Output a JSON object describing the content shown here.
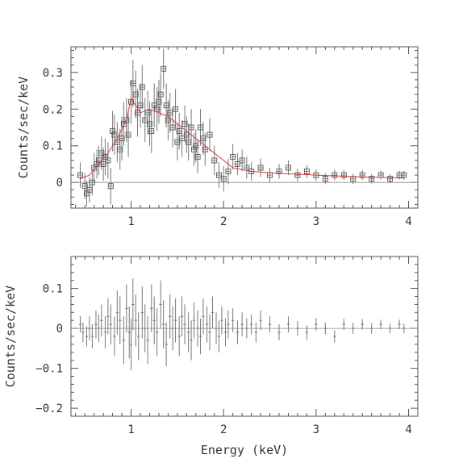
{
  "chart_data": [
    {
      "type": "scatter",
      "panel": "spectrum",
      "title": "",
      "xlabel": "",
      "ylabel": "Counts/sec/keV",
      "xlim": [
        0.35,
        4.1
      ],
      "ylim": [
        -0.07,
        0.37
      ],
      "xticks": [
        1,
        2,
        3,
        4
      ],
      "xtick_labels": [
        "1",
        "2",
        "3",
        "4"
      ],
      "yticks": [
        0,
        0.1,
        0.2,
        0.3
      ],
      "ytick_labels": [
        "0",
        "0.1",
        "0.2",
        "0.3"
      ],
      "x_error": 0.02,
      "series": [
        {
          "marker": "open-square",
          "x": [
            0.45,
            0.5,
            0.52,
            0.55,
            0.58,
            0.6,
            0.63,
            0.65,
            0.68,
            0.7,
            0.72,
            0.75,
            0.78,
            0.8,
            0.82,
            0.85,
            0.88,
            0.9,
            0.92,
            0.95,
            0.97,
            1.0,
            1.02,
            1.05,
            1.07,
            1.1,
            1.12,
            1.15,
            1.18,
            1.2,
            1.22,
            1.25,
            1.28,
            1.3,
            1.32,
            1.35,
            1.38,
            1.4,
            1.42,
            1.45,
            1.48,
            1.5,
            1.52,
            1.55,
            1.58,
            1.6,
            1.62,
            1.65,
            1.68,
            1.7,
            1.72,
            1.75,
            1.78,
            1.8,
            1.85,
            1.9,
            1.95,
            2.0,
            2.05,
            2.1,
            2.15,
            2.2,
            2.25,
            2.3,
            2.4,
            2.5,
            2.6,
            2.7,
            2.8,
            2.9,
            3.0,
            3.1,
            3.2,
            3.3,
            3.4,
            3.5,
            3.6,
            3.7,
            3.8,
            3.9,
            3.95
          ],
          "y": [
            0.02,
            -0.01,
            -0.03,
            -0.02,
            0.0,
            0.04,
            0.05,
            0.06,
            0.08,
            0.05,
            0.07,
            0.06,
            -0.01,
            0.14,
            0.13,
            0.11,
            0.09,
            0.12,
            0.16,
            0.17,
            0.13,
            0.22,
            0.27,
            0.24,
            0.19,
            0.21,
            0.26,
            0.17,
            0.19,
            0.16,
            0.14,
            0.21,
            0.2,
            0.22,
            0.24,
            0.31,
            0.21,
            0.17,
            0.19,
            0.15,
            0.2,
            0.11,
            0.14,
            0.12,
            0.16,
            0.13,
            0.11,
            0.15,
            0.09,
            0.1,
            0.07,
            0.15,
            0.12,
            0.09,
            0.13,
            0.06,
            0.02,
            0.01,
            0.03,
            0.07,
            0.05,
            0.06,
            0.04,
            0.03,
            0.04,
            0.02,
            0.03,
            0.04,
            0.02,
            0.03,
            0.02,
            0.01,
            0.02,
            0.02,
            0.01,
            0.02,
            0.01,
            0.02,
            0.01,
            0.02,
            0.02
          ],
          "y_error": [
            0.035,
            0.035,
            0.035,
            0.035,
            0.035,
            0.04,
            0.04,
            0.04,
            0.045,
            0.045,
            0.05,
            0.05,
            0.05,
            0.055,
            0.055,
            0.055,
            0.055,
            0.06,
            0.06,
            0.06,
            0.06,
            0.06,
            0.065,
            0.065,
            0.065,
            0.06,
            0.06,
            0.06,
            0.06,
            0.06,
            0.06,
            0.06,
            0.06,
            0.06,
            0.06,
            0.055,
            0.06,
            0.055,
            0.055,
            0.055,
            0.055,
            0.05,
            0.05,
            0.05,
            0.05,
            0.05,
            0.05,
            0.05,
            0.045,
            0.045,
            0.045,
            0.05,
            0.045,
            0.045,
            0.045,
            0.04,
            0.035,
            0.035,
            0.035,
            0.035,
            0.03,
            0.03,
            0.03,
            0.025,
            0.025,
            0.02,
            0.02,
            0.02,
            0.018,
            0.018,
            0.016,
            0.015,
            0.015,
            0.014,
            0.014,
            0.013,
            0.013,
            0.012,
            0.012,
            0.012,
            0.012
          ]
        },
        {
          "style": "model-line",
          "color": "#d04040",
          "x": [
            0.45,
            0.55,
            0.65,
            0.75,
            0.85,
            0.95,
            1.0,
            1.05,
            1.1,
            1.2,
            1.3,
            1.4,
            1.5,
            1.6,
            1.7,
            1.8,
            1.9,
            2.0,
            2.1,
            2.3,
            2.6,
            3.0,
            3.5,
            3.95
          ],
          "y": [
            0.01,
            0.02,
            0.05,
            0.08,
            0.12,
            0.17,
            0.23,
            0.21,
            0.19,
            0.2,
            0.19,
            0.18,
            0.16,
            0.14,
            0.12,
            0.1,
            0.08,
            0.06,
            0.04,
            0.03,
            0.025,
            0.02,
            0.015,
            0.012
          ]
        }
      ]
    },
    {
      "type": "scatter",
      "panel": "residuals",
      "title": "",
      "xlabel": "Energy (keV)",
      "ylabel": "Counts/sec/keV",
      "xlim": [
        0.35,
        4.1
      ],
      "ylim": [
        -0.22,
        0.18
      ],
      "xticks": [
        1,
        2,
        3,
        4
      ],
      "xtick_labels": [
        "1",
        "2",
        "3",
        "4"
      ],
      "yticks": [
        -0.2,
        -0.1,
        0,
        0.1
      ],
      "ytick_labels": [
        "−0.2",
        "−0.1",
        "0",
        "0.1"
      ],
      "x_error": 0.015,
      "series": [
        {
          "marker": "error-cross",
          "x": [
            0.45,
            0.48,
            0.52,
            0.55,
            0.58,
            0.62,
            0.65,
            0.68,
            0.72,
            0.75,
            0.78,
            0.82,
            0.85,
            0.88,
            0.92,
            0.95,
            0.98,
            1.0,
            1.02,
            1.05,
            1.08,
            1.12,
            1.15,
            1.18,
            1.22,
            1.25,
            1.28,
            1.32,
            1.35,
            1.38,
            1.42,
            1.45,
            1.48,
            1.52,
            1.55,
            1.58,
            1.62,
            1.65,
            1.68,
            1.72,
            1.75,
            1.78,
            1.82,
            1.85,
            1.88,
            1.92,
            1.95,
            1.98,
            2.02,
            2.05,
            2.1,
            2.15,
            2.2,
            2.25,
            2.3,
            2.35,
            2.4,
            2.5,
            2.6,
            2.7,
            2.8,
            2.9,
            3.0,
            3.1,
            3.2,
            3.3,
            3.4,
            3.5,
            3.6,
            3.7,
            3.8,
            3.9,
            3.95
          ],
          "y": [
            0.01,
            -0.01,
            -0.02,
            0.0,
            -0.02,
            0.01,
            0.0,
            0.02,
            -0.01,
            0.03,
            0.01,
            -0.02,
            0.04,
            0.02,
            -0.03,
            0.05,
            -0.01,
            -0.04,
            0.06,
            0.02,
            -0.02,
            0.04,
            0.0,
            -0.03,
            0.05,
            0.02,
            -0.01,
            0.06,
            0.01,
            -0.04,
            0.03,
            0.0,
            0.02,
            -0.02,
            0.03,
            0.01,
            -0.01,
            -0.03,
            0.02,
            0.0,
            -0.02,
            0.03,
            0.01,
            -0.01,
            0.04,
            0.0,
            -0.02,
            0.02,
            -0.01,
            0.01,
            0.02,
            -0.01,
            0.01,
            0.0,
            0.01,
            -0.01,
            0.02,
            0.01,
            -0.01,
            0.01,
            0.0,
            -0.01,
            0.01,
            0.0,
            -0.02,
            0.01,
            0.0,
            0.01,
            0.0,
            0.01,
            0.0,
            0.01,
            0.0
          ],
          "y_error": [
            0.02,
            0.025,
            0.025,
            0.03,
            0.03,
            0.035,
            0.035,
            0.04,
            0.04,
            0.045,
            0.05,
            0.05,
            0.055,
            0.06,
            0.06,
            0.06,
            0.065,
            0.065,
            0.065,
            0.065,
            0.06,
            0.065,
            0.06,
            0.06,
            0.06,
            0.06,
            0.06,
            0.06,
            0.06,
            0.055,
            0.055,
            0.055,
            0.055,
            0.05,
            0.05,
            0.05,
            0.05,
            0.05,
            0.045,
            0.045,
            0.045,
            0.045,
            0.045,
            0.045,
            0.04,
            0.04,
            0.04,
            0.035,
            0.035,
            0.035,
            0.03,
            0.03,
            0.03,
            0.025,
            0.025,
            0.025,
            0.025,
            0.02,
            0.02,
            0.02,
            0.018,
            0.018,
            0.016,
            0.015,
            0.015,
            0.014,
            0.014,
            0.013,
            0.013,
            0.012,
            0.012,
            0.012,
            0.012
          ]
        }
      ]
    }
  ]
}
